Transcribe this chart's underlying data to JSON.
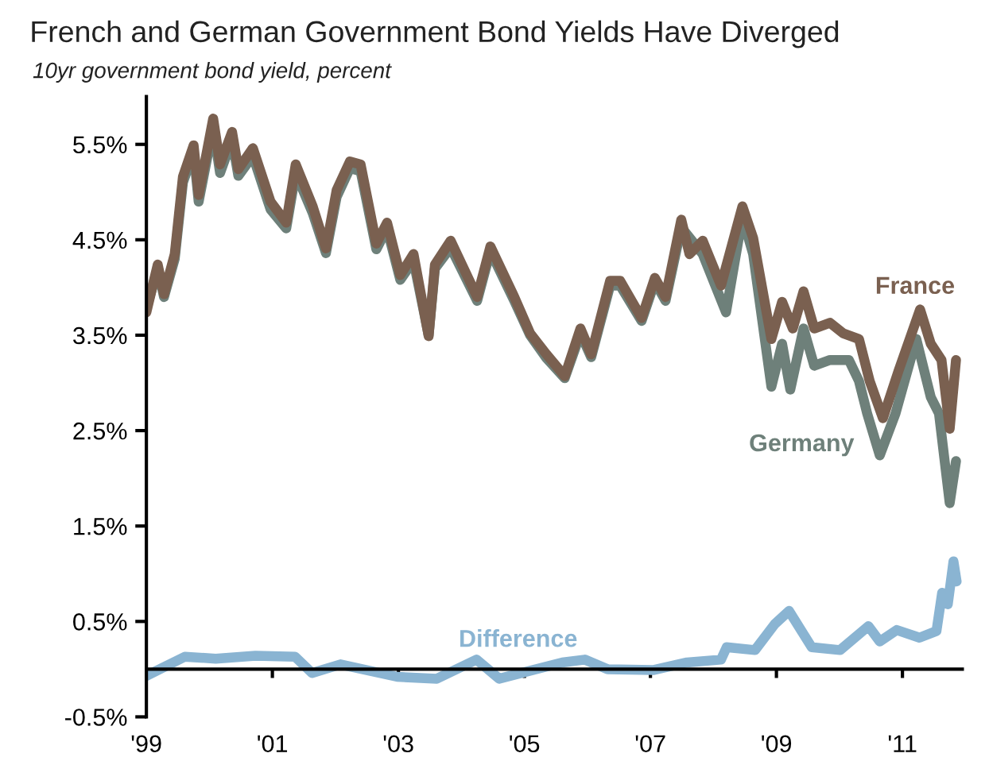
{
  "chart_data": {
    "type": "line",
    "title": "French and German Government Bond Yields Have Diverged",
    "subtitle": "10yr government bond yield, percent",
    "xlim": [
      1999,
      2011.95
    ],
    "ylim": [
      -0.5,
      6.0
    ],
    "xticks": [
      {
        "value": 1999,
        "label": "'99"
      },
      {
        "value": 2001,
        "label": "'01"
      },
      {
        "value": 2003,
        "label": "'03"
      },
      {
        "value": 2005,
        "label": "'05"
      },
      {
        "value": 2007,
        "label": "'07"
      },
      {
        "value": 2009,
        "label": "'09"
      },
      {
        "value": 2011,
        "label": "'11"
      }
    ],
    "yticks": [
      {
        "value": -0.5,
        "label": "-0.5%"
      },
      {
        "value": 0.5,
        "label": "0.5%"
      },
      {
        "value": 1.5,
        "label": "1.5%"
      },
      {
        "value": 2.5,
        "label": "2.5%"
      },
      {
        "value": 3.5,
        "label": "3.5%"
      },
      {
        "value": 4.5,
        "label": "4.5%"
      },
      {
        "value": 5.5,
        "label": "5.5%"
      }
    ],
    "grid": false,
    "legend": false,
    "series": [
      {
        "name": "Germany",
        "color": "#6e807a",
        "x": [
          1999.0,
          1999.18,
          1999.28,
          1999.45,
          1999.58,
          1999.75,
          1999.83,
          2000.06,
          2000.17,
          2000.36,
          2000.46,
          2000.69,
          2000.97,
          2001.22,
          2001.37,
          2001.64,
          2001.85,
          2002.02,
          2002.23,
          2002.4,
          2002.65,
          2002.82,
          2003.03,
          2003.24,
          2003.48,
          2003.58,
          2003.83,
          2004.25,
          2004.46,
          2004.84,
          2005.09,
          2005.35,
          2005.64,
          2005.89,
          2006.06,
          2006.36,
          2006.52,
          2006.86,
          2007.07,
          2007.24,
          2007.49,
          2007.83,
          2008.2,
          2008.46,
          2008.63,
          2008.92,
          2009.09,
          2009.22,
          2009.43,
          2009.6,
          2009.85,
          2010.15,
          2010.31,
          2010.44,
          2010.64,
          2010.89,
          2011.22,
          2011.45,
          2011.58,
          2011.75,
          2011.85
        ],
        "values": [
          3.78,
          4.2,
          3.9,
          4.3,
          5.1,
          5.42,
          4.9,
          5.68,
          5.2,
          5.55,
          5.17,
          5.38,
          4.82,
          4.62,
          5.2,
          4.78,
          4.36,
          4.95,
          5.25,
          5.22,
          4.4,
          4.62,
          4.08,
          4.28,
          3.5,
          4.2,
          4.42,
          3.86,
          4.38,
          3.86,
          3.5,
          3.26,
          3.05,
          3.52,
          3.27,
          4.02,
          4.02,
          3.65,
          4.06,
          3.86,
          4.63,
          4.35,
          3.74,
          4.74,
          4.35,
          2.96,
          3.41,
          2.93,
          3.57,
          3.18,
          3.24,
          3.24,
          3.02,
          2.68,
          2.24,
          2.68,
          3.46,
          2.85,
          2.68,
          1.74,
          2.18
        ]
      },
      {
        "name": "France",
        "color": "#7a6050",
        "x": [
          1999.0,
          1999.18,
          1999.28,
          1999.45,
          1999.58,
          1999.75,
          1999.83,
          2000.06,
          2000.17,
          2000.36,
          2000.46,
          2000.69,
          2000.97,
          2001.22,
          2001.37,
          2001.64,
          2001.85,
          2002.02,
          2002.23,
          2002.4,
          2002.65,
          2002.82,
          2003.03,
          2003.24,
          2003.48,
          2003.58,
          2003.83,
          2004.25,
          2004.46,
          2004.84,
          2005.09,
          2005.35,
          2005.64,
          2005.89,
          2006.06,
          2006.36,
          2006.52,
          2006.86,
          2007.07,
          2007.24,
          2007.49,
          2007.62,
          2007.83,
          2008.12,
          2008.46,
          2008.63,
          2008.92,
          2009.09,
          2009.26,
          2009.43,
          2009.6,
          2009.85,
          2010.06,
          2010.31,
          2010.48,
          2010.69,
          2010.94,
          2011.28,
          2011.45,
          2011.62,
          2011.75,
          2011.85
        ],
        "values": [
          3.74,
          4.24,
          3.93,
          4.35,
          5.16,
          5.49,
          4.97,
          5.77,
          5.29,
          5.63,
          5.24,
          5.46,
          4.9,
          4.68,
          5.29,
          4.85,
          4.41,
          5.02,
          5.32,
          5.29,
          4.46,
          4.68,
          4.13,
          4.35,
          3.49,
          4.24,
          4.49,
          3.9,
          4.43,
          3.9,
          3.52,
          3.3,
          3.07,
          3.57,
          3.3,
          4.07,
          4.07,
          3.68,
          4.1,
          3.9,
          4.71,
          4.35,
          4.49,
          4.02,
          4.85,
          4.52,
          3.46,
          3.85,
          3.57,
          3.96,
          3.57,
          3.63,
          3.52,
          3.46,
          3.02,
          2.63,
          3.13,
          3.77,
          3.41,
          3.24,
          2.52,
          3.24
        ]
      },
      {
        "name": "Difference",
        "color": "#8ab4d2",
        "x": [
          1999.0,
          1999.61,
          2000.1,
          2000.73,
          2001.36,
          2001.63,
          2002.08,
          2002.98,
          2003.61,
          2004.24,
          2004.6,
          2005.6,
          2005.96,
          2006.32,
          2007.04,
          2007.58,
          2008.12,
          2008.21,
          2008.66,
          2008.97,
          2009.2,
          2009.56,
          2010.01,
          2010.46,
          2010.64,
          2010.91,
          2011.27,
          2011.54,
          2011.63,
          2011.72,
          2011.81,
          2011.86
        ],
        "values": [
          -0.07,
          0.13,
          0.11,
          0.14,
          0.13,
          -0.04,
          0.05,
          -0.08,
          -0.1,
          0.1,
          -0.1,
          0.07,
          0.1,
          0.0,
          -0.01,
          0.07,
          0.1,
          0.23,
          0.2,
          0.47,
          0.61,
          0.23,
          0.2,
          0.45,
          0.29,
          0.41,
          0.33,
          0.4,
          0.8,
          0.68,
          1.13,
          0.92
        ]
      }
    ]
  }
}
